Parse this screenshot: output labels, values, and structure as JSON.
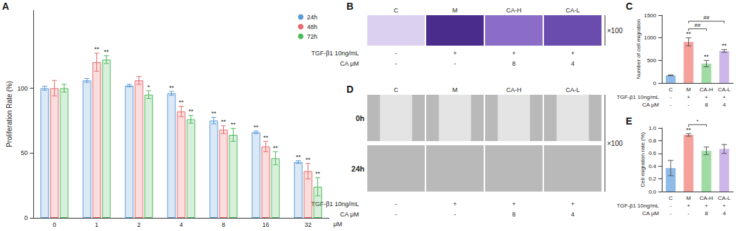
{
  "chart_data": [
    {
      "panel": "A",
      "type": "bar",
      "y_label": "Proliferation Rate (%)",
      "x_label": "μM",
      "categories": [
        "0",
        "1",
        "2",
        "4",
        "8",
        "16",
        "32"
      ],
      "ylim": [
        0,
        160
      ],
      "yticks": [
        0,
        50,
        100
      ],
      "grid": false,
      "legend": "top-right",
      "series": [
        {
          "name": "24h",
          "color": "#5b9bd5",
          "values": [
            100,
            106,
            102,
            96,
            75,
            66,
            43
          ],
          "errors": [
            1.5,
            1.5,
            1,
            1.5,
            2.5,
            1,
            1
          ],
          "annotations": [
            null,
            null,
            null,
            "**",
            "**",
            "**",
            "**"
          ]
        },
        {
          "name": "48h",
          "color": "#e8696b",
          "values": [
            100,
            120,
            106,
            82,
            68,
            55,
            36
          ],
          "errors": [
            6,
            7,
            3,
            4,
            3,
            4,
            6
          ],
          "annotations": [
            null,
            "**",
            null,
            "**",
            "**",
            "**",
            "**"
          ]
        },
        {
          "name": "72h",
          "color": "#4cbb5a",
          "values": [
            100,
            122,
            95,
            76,
            64,
            46,
            24
          ],
          "errors": [
            3,
            3,
            3,
            3,
            5,
            5,
            7
          ],
          "annotations": [
            null,
            "**",
            "*",
            "**",
            "**",
            "**",
            "**"
          ]
        }
      ]
    },
    {
      "panel": "C",
      "type": "bar",
      "y_label": "Number of cell migration",
      "categories": [
        "C",
        "M",
        "CA-H",
        "CA-L"
      ],
      "values": [
        170,
        910,
        430,
        710
      ],
      "errors": [
        10,
        90,
        70,
        30
      ],
      "colors": [
        "#8fbbe8",
        "#f5a19b",
        "#9fdca4",
        "#cdb7ea"
      ],
      "annotations": [
        null,
        "**",
        "**",
        "**"
      ],
      "comparisons": [
        {
          "from": "M",
          "to": "CA-H",
          "label": "##"
        },
        {
          "from": "M",
          "to": "CA-L",
          "label": "##"
        }
      ],
      "conditions": [
        {
          "label": "TGF-β1 10ng/mL",
          "values": [
            "-",
            "+",
            "+",
            "+"
          ]
        },
        {
          "label": "CA μM",
          "values": [
            "-",
            "-",
            "8",
            "4"
          ]
        }
      ],
      "ylim": [
        0,
        1500
      ],
      "yticks": [
        0,
        500,
        1000,
        1500
      ],
      "grid": false
    },
    {
      "panel": "E",
      "type": "bar",
      "y_label": "Cell migration rate (%)",
      "categories": [
        "C",
        "M",
        "CA-H",
        "CA-L"
      ],
      "values": [
        0.37,
        0.89,
        0.64,
        0.67
      ],
      "errors": [
        0.12,
        0.02,
        0.06,
        0.07
      ],
      "colors": [
        "#8fbbe8",
        "#f5a19b",
        "#9fdca4",
        "#cdb7ea"
      ],
      "annotations": [
        null,
        "**",
        null,
        null
      ],
      "comparisons": [
        {
          "from": "M",
          "to": "CA-H",
          "label": "*"
        }
      ],
      "conditions": [
        {
          "label": "TGF-β1 10ng/mL",
          "values": [
            "-",
            "+",
            "+",
            "+"
          ]
        },
        {
          "label": "CA μM",
          "values": [
            "-",
            "-",
            "8",
            "4"
          ]
        }
      ],
      "ylim": [
        0,
        1.0
      ],
      "yticks": [
        {
          "value": 0,
          "label": "0.0"
        },
        {
          "value": 0.2,
          "label": "0.2"
        },
        {
          "value": 0.4,
          "label": "0.4"
        },
        {
          "value": 0.6,
          "label": "0.6"
        },
        {
          "value": 0.8,
          "label": "0.8"
        },
        {
          "value": 1.0,
          "label": "1.0"
        }
      ],
      "grid": false
    }
  ],
  "image_panels": [
    {
      "panel": "B",
      "columns": [
        "C",
        "M",
        "CA-H",
        "CA-L"
      ],
      "rows": [],
      "magnification": "×100",
      "conditions": [
        {
          "label": "TGF-β1 10ng/mL",
          "values": [
            "-",
            "+",
            "+",
            "+"
          ]
        },
        {
          "label": "CA μM",
          "values": [
            "-",
            "-",
            "8",
            "4"
          ]
        }
      ]
    },
    {
      "panel": "D",
      "columns": [
        "C",
        "M",
        "CA-H",
        "CA-L"
      ],
      "rows": [
        "0h",
        "24h"
      ],
      "magnification": "×100",
      "conditions": [
        {
          "label": "TGF-β1 10ng/mL",
          "values": [
            "-",
            "+",
            "+",
            "+"
          ]
        },
        {
          "label": "CA μM",
          "values": [
            "-",
            "-",
            "8",
            "4"
          ]
        }
      ]
    }
  ]
}
